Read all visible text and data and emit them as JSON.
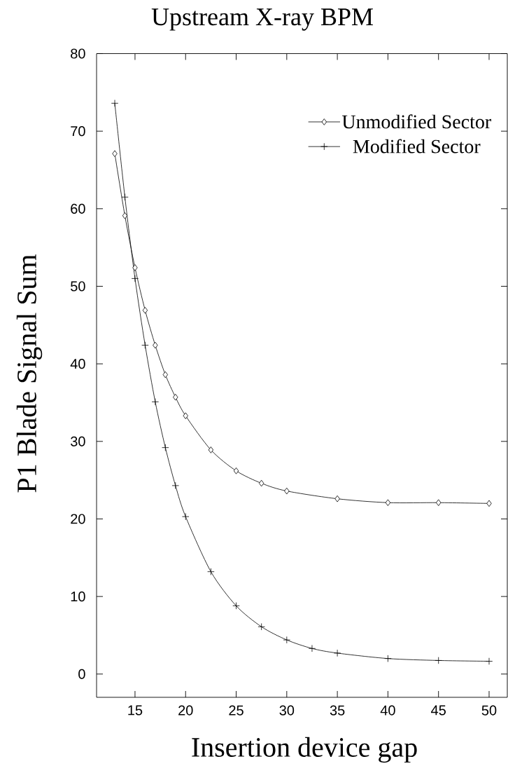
{
  "chart_data": {
    "type": "line",
    "title": "Upstream X-ray BPM",
    "xlabel": "Insertion device gap",
    "ylabel": "P1 Blade Signal Sum",
    "xlim": [
      11.2,
      51.8
    ],
    "ylim": [
      -3,
      80
    ],
    "xticks": [
      15,
      20,
      25,
      30,
      35,
      40,
      45,
      50
    ],
    "yticks": [
      0,
      10,
      20,
      30,
      40,
      50,
      60,
      70,
      80
    ],
    "legend": "top right",
    "grid": false,
    "line_style": "solid",
    "series": [
      {
        "name": "Unmodified Sector",
        "color": "#000000",
        "marker": "diamond",
        "x": [
          13,
          14,
          15,
          16,
          17,
          18,
          19,
          20,
          22.5,
          25,
          27.5,
          30,
          35,
          40,
          45,
          50
        ],
        "values": [
          67.1,
          59.1,
          52.4,
          46.9,
          42.4,
          38.6,
          35.7,
          33.3,
          28.9,
          26.2,
          24.6,
          23.6,
          22.6,
          22.1,
          22.1,
          22.0
        ]
      },
      {
        "name": "Modified Sector",
        "color": "#000000",
        "marker": "cross",
        "x": [
          13,
          14,
          15,
          16,
          17,
          18,
          19,
          20,
          22.5,
          25,
          27.5,
          30,
          32.5,
          35,
          40,
          45,
          50
        ],
        "values": [
          73.6,
          61.5,
          51.0,
          42.4,
          35.1,
          29.2,
          24.3,
          20.3,
          13.2,
          8.8,
          6.1,
          4.4,
          3.3,
          2.7,
          2.0,
          1.75,
          1.65
        ]
      }
    ]
  }
}
